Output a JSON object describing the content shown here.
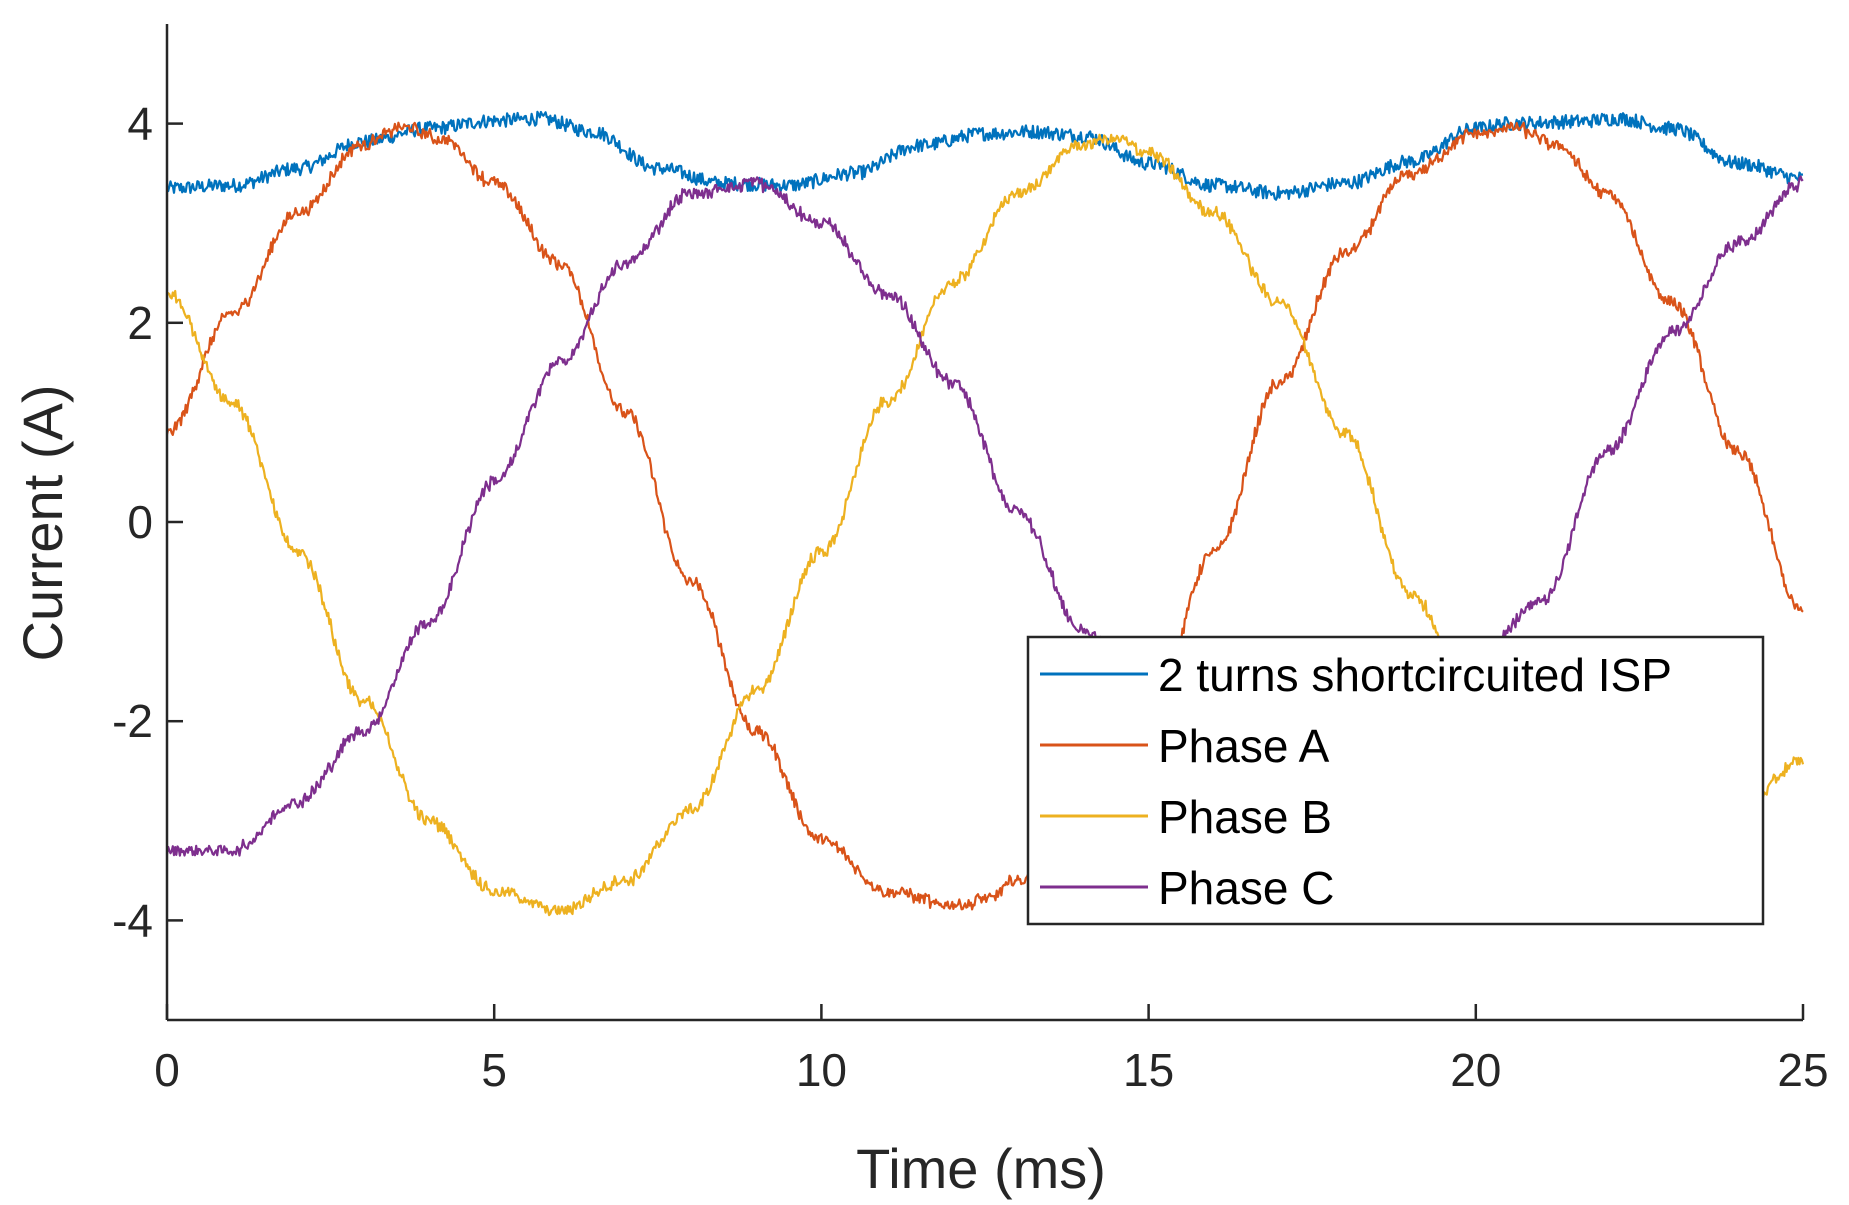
{
  "chart_data": {
    "type": "line",
    "title": "",
    "xlabel": "Time (ms)",
    "ylabel": "Current (A)",
    "xlim": [
      0,
      25
    ],
    "ylim": [
      -5,
      5
    ],
    "xticks": [
      0,
      5,
      10,
      15,
      20,
      25
    ],
    "xtick_labels": [
      "0",
      "5",
      "10",
      "15",
      "20",
      "25"
    ],
    "yticks": [
      -4,
      -2,
      0,
      2,
      4
    ],
    "ytick_labels": [
      "-4",
      "-2",
      "0",
      "2",
      "4"
    ],
    "grid": false,
    "legend_position": "bottom-right",
    "series": [
      {
        "name": "2 turns shortcircuited ISP",
        "color": "#0072BD",
        "x": [
          0,
          1,
          2,
          3,
          4,
          5,
          5.7,
          6.5,
          7.5,
          8.5,
          9.5,
          10.5,
          11.5,
          12.5,
          13.2,
          14,
          15,
          16,
          17,
          18,
          19,
          20,
          20.5,
          21.5,
          22.2,
          23,
          24,
          25
        ],
        "y": [
          3.35,
          3.38,
          3.55,
          3.82,
          3.95,
          4.03,
          4.05,
          3.92,
          3.55,
          3.4,
          3.38,
          3.5,
          3.78,
          3.9,
          3.92,
          3.88,
          3.6,
          3.38,
          3.3,
          3.4,
          3.62,
          3.95,
          4.0,
          4.02,
          4.05,
          3.95,
          3.6,
          3.45
        ]
      },
      {
        "name": "Phase A",
        "color": "#D95319",
        "x": [
          0,
          1,
          2,
          3,
          3.6,
          4.2,
          5,
          6,
          7,
          8,
          9,
          10,
          11,
          12,
          12.5,
          13,
          14,
          15,
          16,
          17,
          18,
          19,
          20,
          20.6,
          21.2,
          22,
          23,
          24,
          25
        ],
        "y": [
          0.9,
          2.1,
          3.1,
          3.8,
          3.96,
          3.85,
          3.4,
          2.6,
          1.1,
          -0.6,
          -2.1,
          -3.2,
          -3.7,
          -3.85,
          -3.8,
          -3.6,
          -3.0,
          -2.0,
          -0.3,
          1.4,
          2.7,
          3.5,
          3.9,
          3.95,
          3.8,
          3.3,
          2.2,
          0.7,
          -0.9
        ]
      },
      {
        "name": "Phase B",
        "color": "#EDB120",
        "x": [
          0,
          1,
          2,
          3,
          4,
          5,
          6,
          7,
          8,
          9,
          10,
          11,
          12,
          13,
          14,
          14.5,
          15,
          16,
          17,
          18,
          19,
          20,
          21,
          22,
          23,
          24,
          25
        ],
        "y": [
          2.3,
          1.2,
          -0.3,
          -1.8,
          -3.0,
          -3.7,
          -3.9,
          -3.6,
          -2.9,
          -1.7,
          -0.3,
          1.2,
          2.4,
          3.3,
          3.8,
          3.85,
          3.7,
          3.1,
          2.2,
          0.9,
          -0.7,
          -1.9,
          -2.7,
          -3.0,
          -3.1,
          -2.9,
          -2.4
        ]
      },
      {
        "name": "Phase C",
        "color": "#7E2F8E",
        "x": [
          0,
          1,
          2,
          3,
          4,
          5,
          6,
          7,
          8,
          9,
          10,
          11,
          12,
          13,
          14,
          15,
          16,
          17,
          18,
          19,
          20,
          21,
          22,
          23,
          24,
          25
        ],
        "y": [
          -3.3,
          -3.3,
          -2.8,
          -2.1,
          -1.0,
          0.4,
          1.6,
          2.6,
          3.3,
          3.4,
          3.0,
          2.3,
          1.4,
          0.1,
          -1.1,
          -1.8,
          -2.5,
          -2.9,
          -2.6,
          -2.0,
          -1.4,
          -0.8,
          0.7,
          1.9,
          2.8,
          3.4
        ]
      }
    ]
  }
}
